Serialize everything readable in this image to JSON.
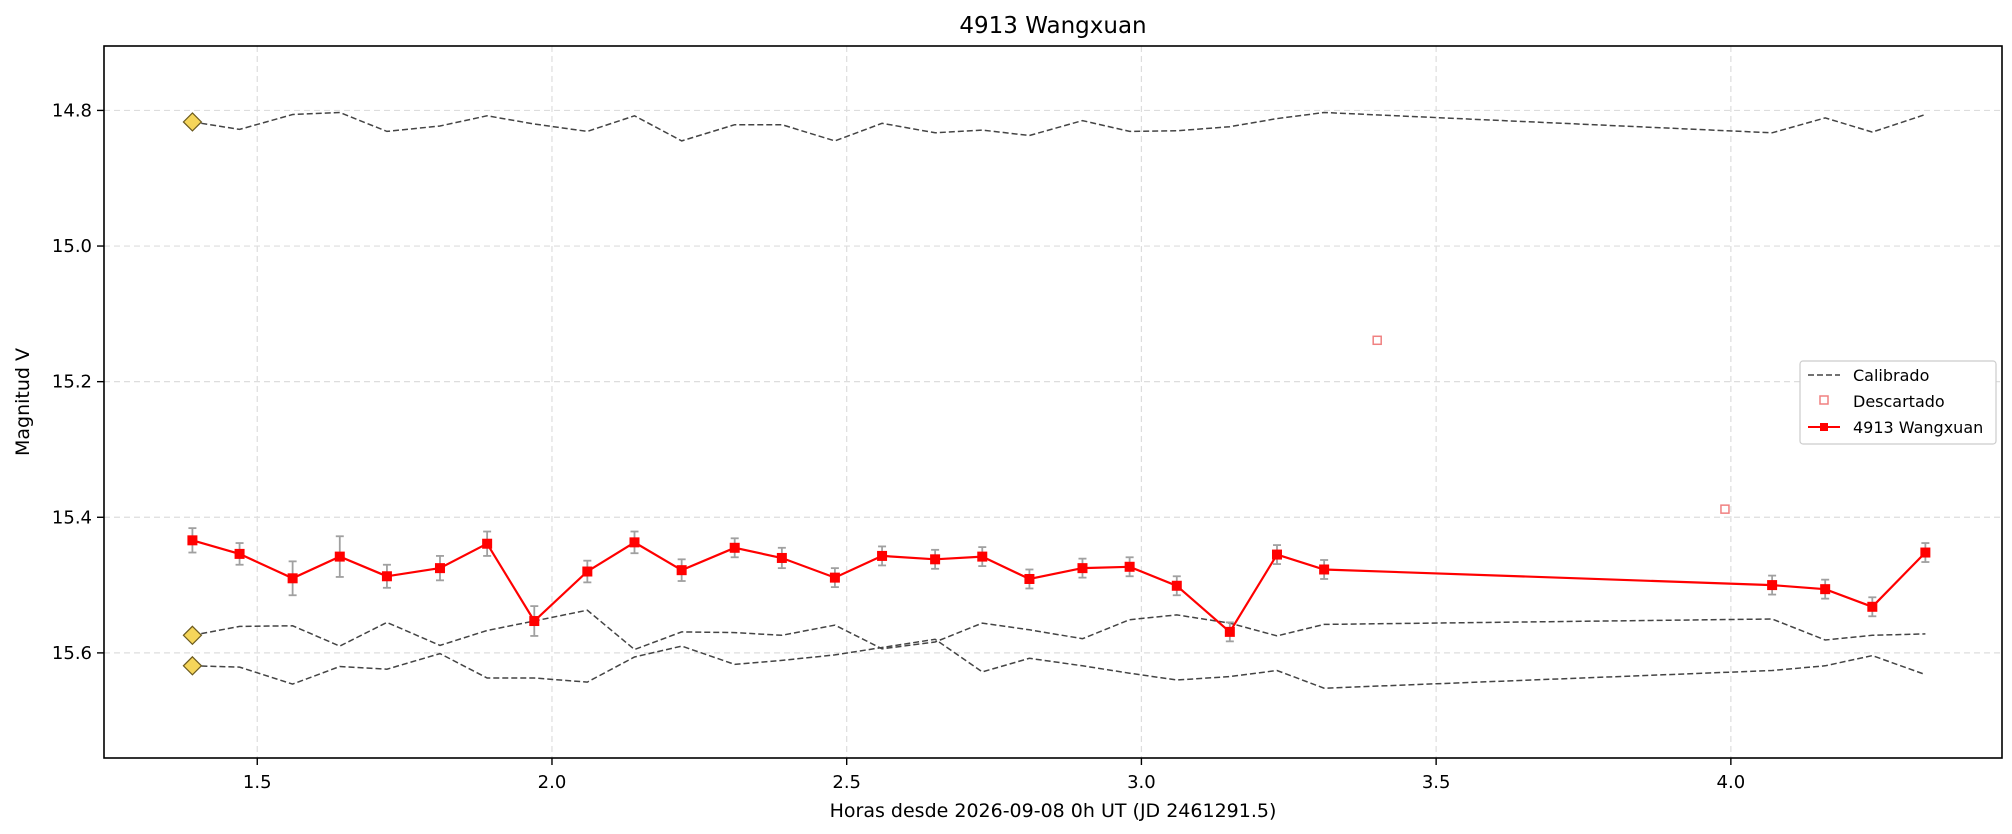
{
  "chart_data": {
    "type": "line",
    "title": "4913 Wangxuan",
    "xlabel": "Horas desde 2026-09-08 0h UT (JD 2461291.5)",
    "ylabel": "Magnitud V",
    "xlim": [
      1.24,
      4.46
    ],
    "ylim": [
      15.755,
      14.705
    ],
    "y_inverted": true,
    "x_ticks": [
      1.5,
      2.0,
      2.5,
      3.0,
      3.5,
      4.0
    ],
    "x_tick_labels": [
      "1.5",
      "2.0",
      "2.5",
      "3.0",
      "3.5",
      "4.0"
    ],
    "y_ticks": [
      14.8,
      15.0,
      15.2,
      15.4,
      15.6
    ],
    "y_tick_labels": [
      "14.8",
      "15.0",
      "15.2",
      "15.4",
      "15.6"
    ],
    "grid": true,
    "legend_position": "center-right",
    "x": [
      1.39,
      1.47,
      1.56,
      1.64,
      1.72,
      1.81,
      1.89,
      1.97,
      2.06,
      2.14,
      2.22,
      2.31,
      2.39,
      2.48,
      2.56,
      2.65,
      2.73,
      2.81,
      2.9,
      2.98,
      3.06,
      3.15,
      3.23,
      3.31,
      4.07,
      4.16,
      4.24,
      4.33
    ],
    "series": [
      {
        "name": "Calibrado",
        "style": "dashed",
        "color": "#444444",
        "values": [
          14.817,
          14.828,
          14.806,
          14.803,
          14.831,
          14.823,
          14.808,
          14.82,
          14.831,
          14.808,
          14.845,
          14.821,
          14.821,
          14.845,
          14.819,
          14.833,
          14.829,
          14.837,
          14.815,
          14.831,
          14.83,
          14.824,
          14.812,
          14.803,
          14.833,
          14.811,
          14.832,
          14.806
        ]
      },
      {
        "name": "Calibrado",
        "style": "dashed",
        "color": "#444444",
        "show_in_legend": false,
        "values": [
          15.574,
          15.561,
          15.56,
          15.59,
          15.555,
          15.589,
          15.567,
          15.553,
          15.537,
          15.595,
          15.569,
          15.57,
          15.574,
          15.559,
          15.594,
          15.584,
          15.556,
          15.566,
          15.579,
          15.551,
          15.544,
          15.556,
          15.575,
          15.558,
          15.55,
          15.581,
          15.574,
          15.572
        ]
      },
      {
        "name": "Calibrado",
        "style": "dashed",
        "color": "#444444",
        "show_in_legend": false,
        "values": [
          15.619,
          15.621,
          15.646,
          15.62,
          15.624,
          15.601,
          15.637,
          15.637,
          15.643,
          15.606,
          15.59,
          15.617,
          15.611,
          15.603,
          15.592,
          15.58,
          15.628,
          15.608,
          15.619,
          15.63,
          15.64,
          15.635,
          15.626,
          15.652,
          15.626,
          15.619,
          15.604,
          15.632
        ]
      },
      {
        "name": "4913 Wangxuan",
        "style": "solid-square",
        "color": "#ff0000",
        "values": [
          15.434,
          15.454,
          15.49,
          15.458,
          15.487,
          15.475,
          15.439,
          15.553,
          15.48,
          15.437,
          15.478,
          15.445,
          15.46,
          15.489,
          15.457,
          15.462,
          15.458,
          15.491,
          15.475,
          15.473,
          15.501,
          15.569,
          15.455,
          15.477,
          15.5,
          15.506,
          15.532,
          15.452
        ],
        "errors": [
          0.018,
          0.016,
          0.025,
          0.03,
          0.017,
          0.018,
          0.018,
          0.022,
          0.016,
          0.016,
          0.016,
          0.014,
          0.015,
          0.014,
          0.014,
          0.014,
          0.014,
          0.014,
          0.014,
          0.014,
          0.014,
          0.014,
          0.014,
          0.014,
          0.014,
          0.014,
          0.014,
          0.014
        ]
      }
    ],
    "descartado": {
      "name": "Descartado",
      "color": "#f08080",
      "x": [
        3.4,
        3.99
      ],
      "values": [
        15.139,
        15.388
      ]
    },
    "reference_markers": {
      "x": 1.39,
      "values": [
        14.817,
        15.574,
        15.619
      ],
      "color": "#f5d55a"
    },
    "legend": [
      "Calibrado",
      "Descartado",
      "4913 Wangxuan"
    ]
  }
}
